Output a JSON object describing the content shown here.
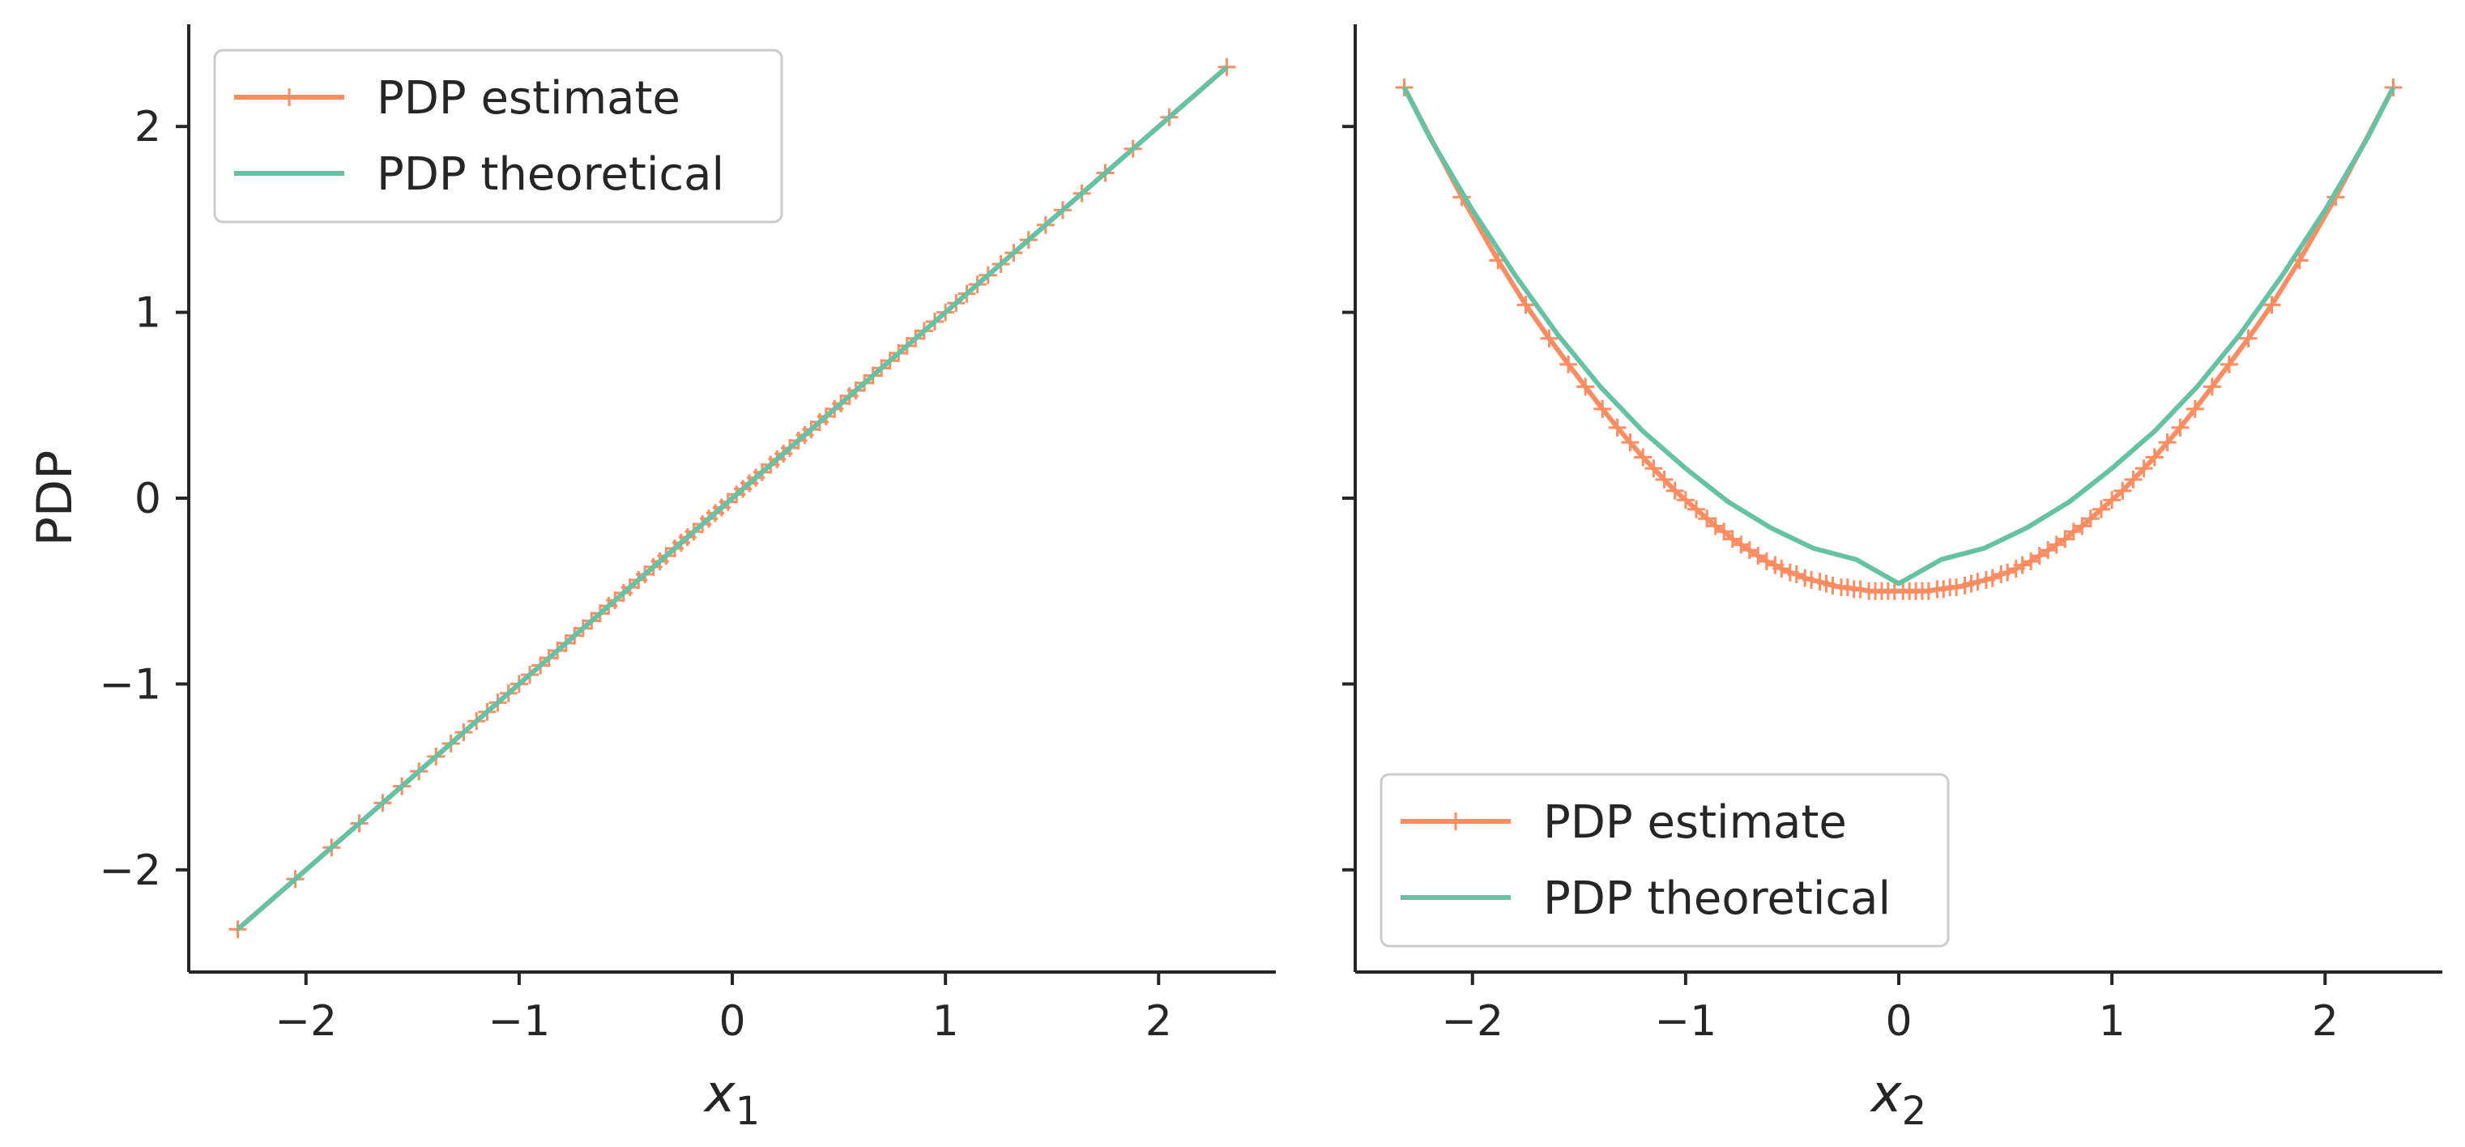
{
  "colors": {
    "estimate": "#fc8d62",
    "theoretical": "#66c2a5",
    "axis": "#262626"
  },
  "chart_data": [
    {
      "type": "line",
      "xlabel_base": "x",
      "xlabel_sub": "1",
      "ylabel": "PDP",
      "xlim": [
        -2.55,
        2.55
      ],
      "ylim": [
        -2.55,
        2.55
      ],
      "xticks": [
        -2,
        -1,
        0,
        1,
        2
      ],
      "xtick_labels": [
        "−2",
        "−1",
        "0",
        "1",
        "2"
      ],
      "yticks": [
        -2,
        -1,
        0,
        1,
        2
      ],
      "ytick_labels": [
        "−2",
        "−1",
        "0",
        "1",
        "2"
      ],
      "legend_position": "upper-left",
      "legend": [
        "PDP estimate",
        "PDP theoretical"
      ],
      "series": [
        {
          "name": "PDP estimate",
          "marker": "+",
          "x": [
            -2.32,
            -2.05,
            -1.88,
            -1.75,
            -1.64,
            -1.55,
            -1.47,
            -1.39,
            -1.32,
            -1.26,
            -1.2,
            -1.15,
            -1.1,
            -1.05,
            -1.0,
            -0.95,
            -0.9,
            -0.86,
            -0.82,
            -0.78,
            -0.74,
            -0.7,
            -0.66,
            -0.62,
            -0.58,
            -0.55,
            -0.51,
            -0.48,
            -0.44,
            -0.41,
            -0.37,
            -0.34,
            -0.31,
            -0.27,
            -0.24,
            -0.21,
            -0.18,
            -0.14,
            -0.11,
            -0.08,
            -0.05,
            -0.02,
            0.02,
            0.05,
            0.08,
            0.11,
            0.14,
            0.18,
            0.21,
            0.24,
            0.27,
            0.31,
            0.34,
            0.37,
            0.41,
            0.44,
            0.48,
            0.51,
            0.55,
            0.58,
            0.62,
            0.66,
            0.7,
            0.74,
            0.78,
            0.82,
            0.86,
            0.9,
            0.95,
            1.0,
            1.05,
            1.1,
            1.15,
            1.2,
            1.26,
            1.32,
            1.39,
            1.47,
            1.55,
            1.64,
            1.75,
            1.88,
            2.05,
            2.32
          ],
          "y": [
            -2.32,
            -2.05,
            -1.88,
            -1.75,
            -1.64,
            -1.55,
            -1.47,
            -1.39,
            -1.32,
            -1.26,
            -1.2,
            -1.15,
            -1.1,
            -1.05,
            -1.0,
            -0.95,
            -0.9,
            -0.86,
            -0.82,
            -0.78,
            -0.74,
            -0.7,
            -0.66,
            -0.62,
            -0.58,
            -0.55,
            -0.51,
            -0.48,
            -0.44,
            -0.41,
            -0.37,
            -0.34,
            -0.31,
            -0.27,
            -0.24,
            -0.21,
            -0.18,
            -0.14,
            -0.11,
            -0.08,
            -0.05,
            -0.02,
            0.02,
            0.05,
            0.08,
            0.11,
            0.14,
            0.18,
            0.21,
            0.24,
            0.27,
            0.31,
            0.34,
            0.37,
            0.41,
            0.44,
            0.48,
            0.51,
            0.55,
            0.58,
            0.62,
            0.66,
            0.7,
            0.74,
            0.78,
            0.82,
            0.86,
            0.9,
            0.95,
            1.0,
            1.05,
            1.1,
            1.15,
            1.2,
            1.26,
            1.32,
            1.39,
            1.47,
            1.55,
            1.64,
            1.75,
            1.88,
            2.05,
            2.32
          ]
        },
        {
          "name": "PDP theoretical",
          "marker": "none",
          "x": [
            -2.32,
            2.32
          ],
          "y": [
            -2.32,
            2.32
          ]
        }
      ]
    },
    {
      "type": "line",
      "xlabel_base": "x",
      "xlabel_sub": "2",
      "ylabel": "",
      "xlim": [
        -2.55,
        2.55
      ],
      "ylim": [
        -2.55,
        2.55
      ],
      "xticks": [
        -2,
        -1,
        0,
        1,
        2
      ],
      "xtick_labels": [
        "−2",
        "−1",
        "0",
        "1",
        "2"
      ],
      "yticks": [
        -2,
        -1,
        0,
        1,
        2
      ],
      "ytick_labels": [],
      "legend_position": "lower-left",
      "legend": [
        "PDP estimate",
        "PDP theoretical"
      ],
      "series": [
        {
          "name": "PDP estimate",
          "marker": "+",
          "x": [
            -2.32,
            -2.05,
            -1.88,
            -1.75,
            -1.64,
            -1.55,
            -1.47,
            -1.39,
            -1.32,
            -1.26,
            -1.2,
            -1.15,
            -1.1,
            -1.05,
            -1.0,
            -0.95,
            -0.9,
            -0.86,
            -0.82,
            -0.78,
            -0.74,
            -0.7,
            -0.66,
            -0.62,
            -0.58,
            -0.55,
            -0.51,
            -0.48,
            -0.44,
            -0.41,
            -0.37,
            -0.34,
            -0.31,
            -0.27,
            -0.24,
            -0.21,
            -0.18,
            -0.14,
            -0.11,
            -0.08,
            -0.05,
            -0.02,
            0.02,
            0.05,
            0.08,
            0.11,
            0.14,
            0.18,
            0.21,
            0.24,
            0.27,
            0.31,
            0.34,
            0.37,
            0.41,
            0.44,
            0.48,
            0.51,
            0.55,
            0.58,
            0.62,
            0.66,
            0.7,
            0.74,
            0.78,
            0.82,
            0.86,
            0.9,
            0.95,
            1.0,
            1.05,
            1.1,
            1.15,
            1.2,
            1.26,
            1.32,
            1.39,
            1.47,
            1.55,
            1.64,
            1.75,
            1.88,
            2.05,
            2.32
          ],
          "y": [
            2.21,
            1.62,
            1.28,
            1.04,
            0.86,
            0.72,
            0.6,
            0.48,
            0.38,
            0.3,
            0.22,
            0.16,
            0.1,
            0.04,
            -0.01,
            -0.06,
            -0.11,
            -0.15,
            -0.18,
            -0.22,
            -0.25,
            -0.28,
            -0.31,
            -0.34,
            -0.36,
            -0.38,
            -0.4,
            -0.41,
            -0.43,
            -0.44,
            -0.45,
            -0.46,
            -0.47,
            -0.48,
            -0.48,
            -0.49,
            -0.49,
            -0.5,
            -0.5,
            -0.5,
            -0.5,
            -0.5,
            -0.5,
            -0.5,
            -0.5,
            -0.5,
            -0.5,
            -0.49,
            -0.49,
            -0.48,
            -0.48,
            -0.47,
            -0.46,
            -0.45,
            -0.44,
            -0.43,
            -0.41,
            -0.4,
            -0.38,
            -0.36,
            -0.34,
            -0.31,
            -0.28,
            -0.25,
            -0.22,
            -0.18,
            -0.15,
            -0.11,
            -0.06,
            -0.01,
            0.04,
            0.1,
            0.16,
            0.22,
            0.3,
            0.38,
            0.48,
            0.6,
            0.72,
            0.86,
            1.04,
            1.28,
            1.62,
            2.21
          ]
        },
        {
          "name": "PDP theoretical",
          "marker": "none",
          "x": [
            -2.32,
            -2.2,
            -2.0,
            -1.8,
            -1.6,
            -1.4,
            -1.2,
            -1.0,
            -0.8,
            -0.6,
            -0.4,
            -0.2,
            0,
            0.2,
            0.4,
            0.6,
            0.8,
            1.0,
            1.2,
            1.4,
            1.6,
            1.8,
            2.0,
            2.2,
            2.32
          ],
          "y": [
            2.21,
            1.94,
            1.55,
            1.2,
            0.88,
            0.6,
            0.36,
            0.16,
            -0.02,
            -0.16,
            -0.27,
            -0.33,
            -0.46,
            -0.33,
            -0.27,
            -0.16,
            -0.02,
            0.16,
            0.36,
            0.6,
            0.88,
            1.2,
            1.55,
            1.94,
            2.21
          ]
        }
      ]
    }
  ]
}
